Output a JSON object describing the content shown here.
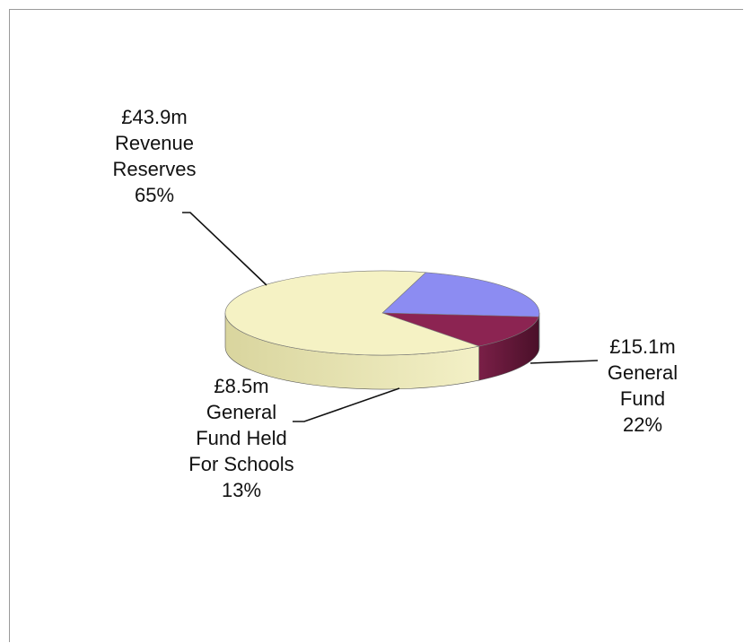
{
  "chart_data": {
    "type": "pie",
    "style": "3d",
    "title": "",
    "unit_prefix": "£",
    "unit_suffix": "m",
    "slices": [
      {
        "label": [
          "General",
          "Fund"
        ],
        "value_text": "£15.1m",
        "percent_text": "22%",
        "value": 15.1,
        "percent": 22,
        "color": "#8c8cf2",
        "side_color": "#3c3f75"
      },
      {
        "label": [
          "General",
          "Fund  Held",
          "For Schools"
        ],
        "value_text": "£8.5m",
        "percent_text": "13%",
        "value": 8.5,
        "percent": 13,
        "color": "#8c2452",
        "side_color": "#5c1734"
      },
      {
        "label": [
          "Revenue",
          "Reserves"
        ],
        "value_text": "£43.9m",
        "percent_text": "65%",
        "value": 43.9,
        "percent": 65,
        "color": "#f5f2c4",
        "side_color": "#d9d59e"
      }
    ],
    "legend": "none",
    "data_labels": "outside-with-leader-lines"
  }
}
